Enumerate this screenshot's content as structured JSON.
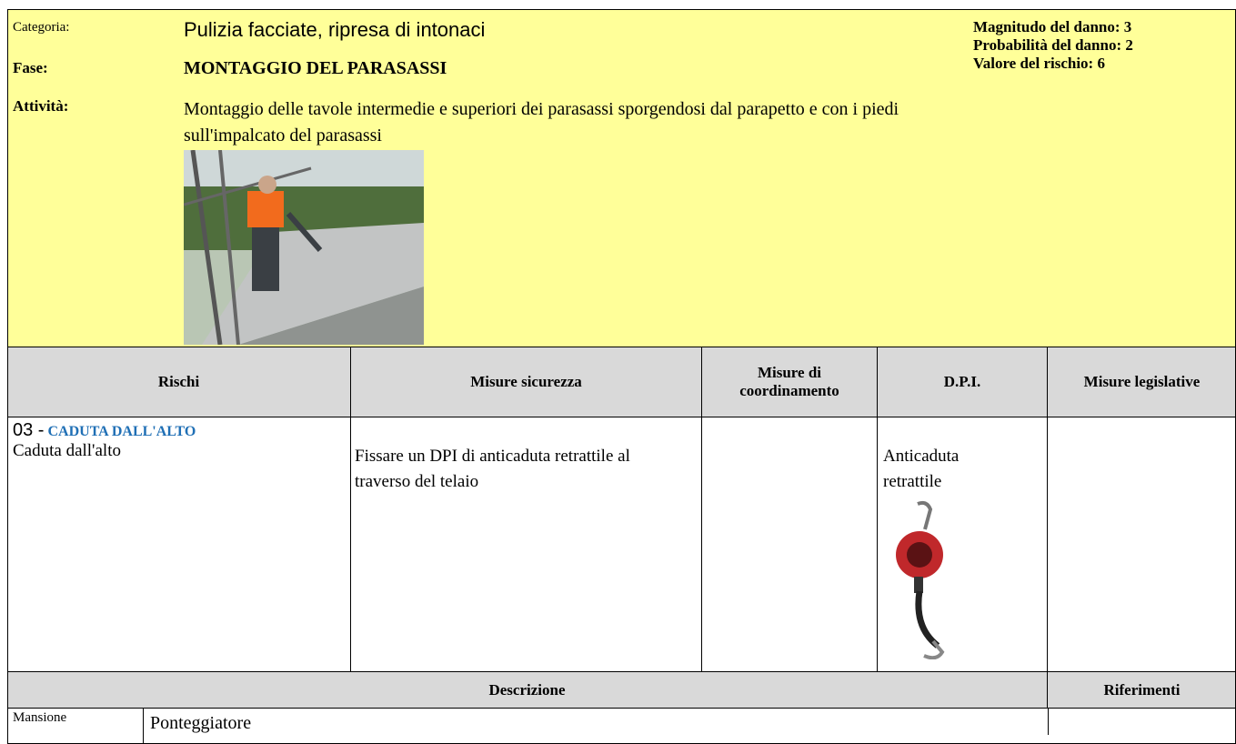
{
  "header": {
    "categoria_label": "Categoria:",
    "categoria": "Pulizia facciate, ripresa di intonaci",
    "fase_label": "Fase:",
    "fase": "MONTAGGIO DEL PARASASSI",
    "attivita_label": "Attività:",
    "attivita": "Montaggio delle tavole intermedie e superiori dei parasassi sporgendosi dal parapetto e con i piedi sull'impalcato del parasassi",
    "risk_lines": [
      "Magnitudo del danno: 3",
      "Probabilità del danno: 2",
      "Valore del rischio: 6"
    ]
  },
  "table": {
    "columns": [
      "Rischi",
      "Misure sicurezza",
      "Misure di coordinamento",
      "D.P.I.",
      "Misure legislative"
    ],
    "rows": [
      {
        "code": "03 -",
        "risk_title": "CADUTA DALL'ALTO",
        "risk": "Caduta dall'alto",
        "misure": "Fissare un DPI di anticaduta retrattile al traverso del telaio",
        "dpi": "Anticaduta retrattile"
      }
    ]
  },
  "descrizione": {
    "header": "Descrizione",
    "riferimenti": "Riferimenti",
    "mansione_label": "Mansione",
    "mansione": "Ponteggiatore"
  }
}
